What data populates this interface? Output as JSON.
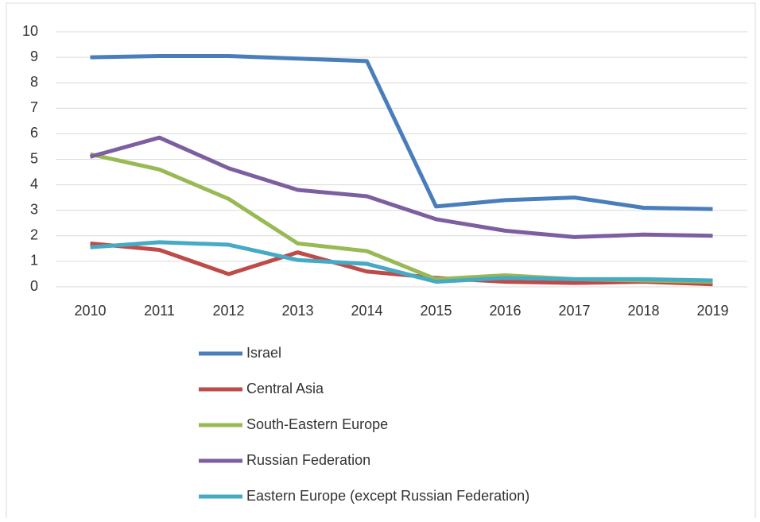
{
  "chart_data": {
    "type": "line",
    "categories": [
      "2010",
      "2011",
      "2012",
      "2013",
      "2014",
      "2015",
      "2016",
      "2017",
      "2018",
      "2019"
    ],
    "series": [
      {
        "name": "Israel",
        "color": "#4a7ebb",
        "values": [
          9.0,
          9.05,
          9.05,
          8.95,
          8.85,
          3.15,
          3.4,
          3.5,
          3.1,
          3.05
        ]
      },
      {
        "name": "Central Asia",
        "color": "#be4b48",
        "values": [
          1.7,
          1.45,
          0.5,
          1.35,
          0.6,
          0.35,
          0.2,
          0.15,
          0.2,
          0.1
        ]
      },
      {
        "name": "South-Eastern Europe",
        "color": "#98b954",
        "values": [
          5.2,
          4.6,
          3.45,
          1.7,
          1.4,
          0.3,
          0.45,
          0.3,
          0.25,
          0.2
        ]
      },
      {
        "name": "Russian Federation",
        "color": "#7d5fa0",
        "values": [
          5.1,
          5.85,
          4.65,
          3.8,
          3.55,
          2.65,
          2.2,
          1.95,
          2.05,
          2.0
        ]
      },
      {
        "name": "Eastern Europe (except Russian Federation)",
        "color": "#46aac5",
        "values": [
          1.55,
          1.75,
          1.65,
          1.05,
          0.9,
          0.2,
          0.35,
          0.3,
          0.3,
          0.25
        ]
      }
    ],
    "ylim": [
      0,
      10
    ],
    "yticks": [
      0,
      1,
      2,
      3,
      4,
      5,
      6,
      7,
      8,
      9,
      10
    ],
    "grid": true,
    "legend": "bottom"
  }
}
